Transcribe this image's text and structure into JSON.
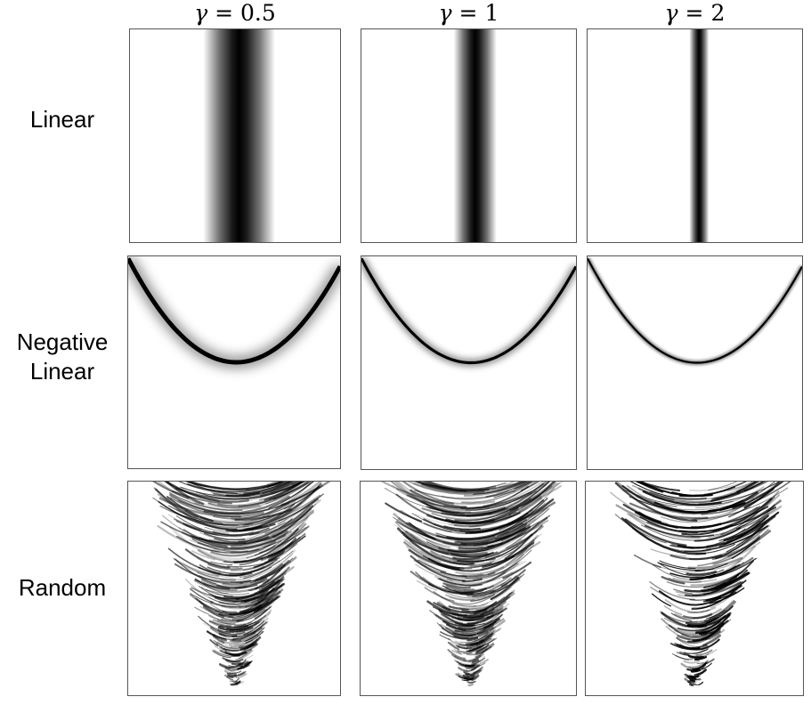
{
  "columns": [
    {
      "symbol": "γ",
      "equals": " = ",
      "value": "0.5"
    },
    {
      "symbol": "γ",
      "equals": " = ",
      "value": "1"
    },
    {
      "symbol": "γ",
      "equals": " = ",
      "value": "2"
    }
  ],
  "rows": [
    {
      "label_line1": "Linear",
      "label_line2": ""
    },
    {
      "label_line1": "Negative",
      "label_line2": "Linear"
    },
    {
      "label_line1": "Random",
      "label_line2": ""
    }
  ],
  "panel_kinds": [
    "vertical-band",
    "parabola-curve",
    "noisy-parabola-fan"
  ],
  "colors": {
    "ink": "#000000",
    "frame": "#555555",
    "background": "#ffffff"
  }
}
